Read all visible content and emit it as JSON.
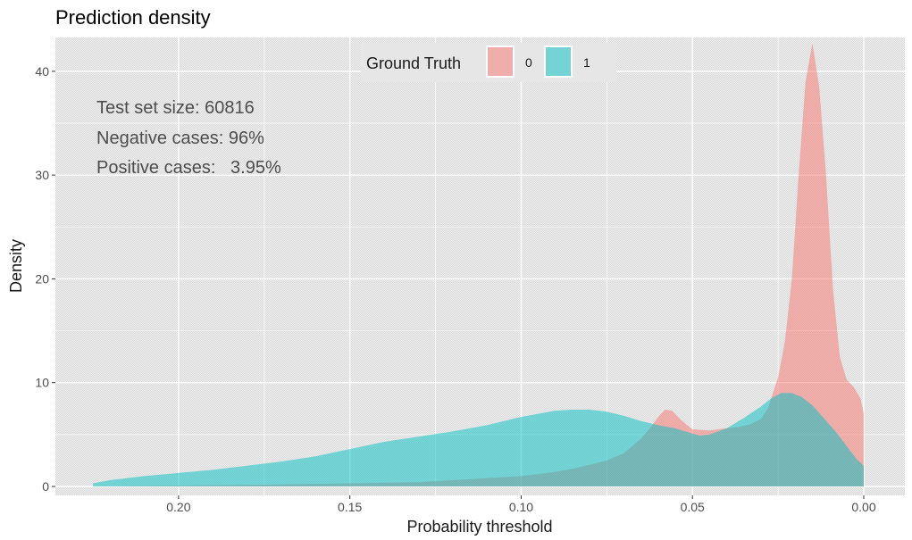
{
  "chart_data": {
    "type": "area",
    "title": "Prediction density",
    "xlabel": "Probability threshold",
    "ylabel": "Density",
    "x_reversed": true,
    "xlim": [
      0.225,
      0
    ],
    "ylim": [
      0,
      43
    ],
    "x_ticks": [
      0.2,
      0.15,
      0.1,
      0.05,
      0.0
    ],
    "x_tick_labels": [
      "0.20",
      "0.15",
      "0.10",
      "0.05",
      "0.00"
    ],
    "y_ticks": [
      0,
      10,
      20,
      30,
      40
    ],
    "y_tick_labels": [
      "0",
      "10",
      "20",
      "30",
      "40"
    ],
    "grid": true,
    "legend": {
      "title": "Ground Truth",
      "placement": "top",
      "entries": [
        {
          "label": "0",
          "color": "#f8766d"
        },
        {
          "label": "1",
          "color": "#00bfc4"
        }
      ]
    },
    "annotations": [
      "Test set size: 60816",
      "Negative cases: 96%",
      "Positive cases:   3.95%"
    ],
    "series": [
      {
        "name": "0",
        "color": "#f8766d",
        "x": [
          0.0,
          0.001,
          0.003,
          0.005,
          0.007,
          0.009,
          0.011,
          0.013,
          0.015,
          0.017,
          0.019,
          0.021,
          0.023,
          0.025,
          0.028,
          0.03,
          0.033,
          0.037,
          0.04,
          0.045,
          0.05,
          0.053,
          0.056,
          0.058,
          0.06,
          0.062,
          0.065,
          0.07,
          0.075,
          0.08,
          0.085,
          0.09,
          0.1,
          0.11,
          0.12,
          0.13,
          0.15,
          0.17,
          0.19,
          0.21,
          0.225
        ],
        "values": [
          7.0,
          8.5,
          9.6,
          10.3,
          12.5,
          19.0,
          30.0,
          38.5,
          42.7,
          39.0,
          30.0,
          20.0,
          14.0,
          10.5,
          7.5,
          6.5,
          6.0,
          5.7,
          5.6,
          5.4,
          5.5,
          6.3,
          7.3,
          7.4,
          6.7,
          5.8,
          4.6,
          3.2,
          2.5,
          2.1,
          1.7,
          1.4,
          1.0,
          0.8,
          0.6,
          0.4,
          0.3,
          0.2,
          0.1,
          0.05,
          0.0
        ]
      },
      {
        "name": "1",
        "color": "#00bfc4",
        "x": [
          0.0,
          0.002,
          0.005,
          0.008,
          0.012,
          0.015,
          0.018,
          0.021,
          0.024,
          0.027,
          0.03,
          0.035,
          0.04,
          0.045,
          0.048,
          0.05,
          0.055,
          0.06,
          0.065,
          0.07,
          0.075,
          0.08,
          0.085,
          0.09,
          0.095,
          0.1,
          0.11,
          0.12,
          0.13,
          0.14,
          0.15,
          0.16,
          0.17,
          0.18,
          0.19,
          0.2,
          0.21,
          0.22,
          0.225
        ],
        "values": [
          2.0,
          2.6,
          3.9,
          5.2,
          6.7,
          7.8,
          8.6,
          9.0,
          9.0,
          8.5,
          7.7,
          6.6,
          5.6,
          5.0,
          4.9,
          5.1,
          5.6,
          5.9,
          6.3,
          6.8,
          7.2,
          7.4,
          7.4,
          7.3,
          7.0,
          6.7,
          5.9,
          5.3,
          4.8,
          4.3,
          3.6,
          2.9,
          2.4,
          2.0,
          1.6,
          1.3,
          1.0,
          0.6,
          0.3
        ]
      }
    ]
  }
}
